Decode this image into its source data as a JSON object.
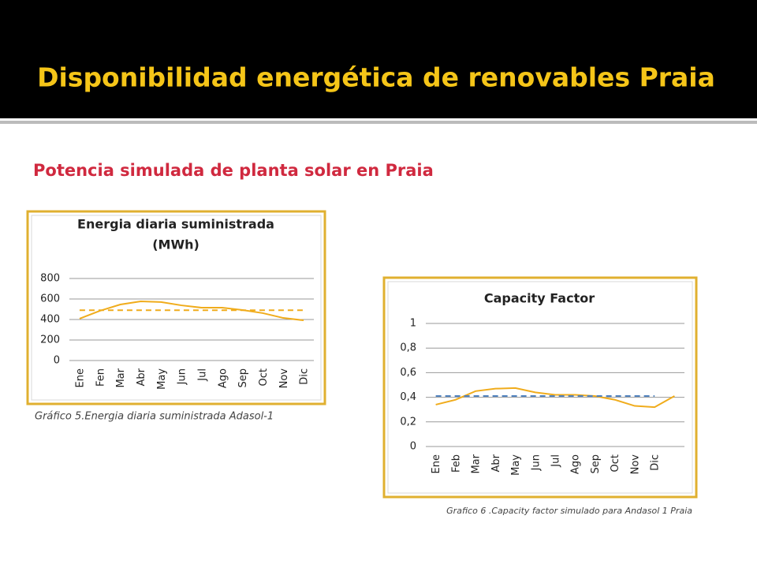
{
  "title": "Disponibilidad energética de renovables Praia",
  "subtitle": "Potencia simulada de planta solar en Praia",
  "chart_data": [
    {
      "type": "line",
      "title": [
        "Energia diaria suministrada",
        "(MWh)"
      ],
      "caption": "Gráfico 5.Energia diaria suministrada Adasol-1",
      "categories": [
        "Ene",
        "Fen",
        "Mar",
        "Abr",
        "May",
        "Jun",
        "Jul",
        "Ago",
        "Sep",
        "Oct",
        "Nov",
        "Dic"
      ],
      "series": [
        {
          "color": "#f0ac1c",
          "values": [
            408,
            485,
            546,
            577,
            570,
            538,
            515,
            515,
            492,
            462,
            415,
            392
          ]
        },
        {
          "color": "#f0ac1c",
          "dashed": true,
          "values": [
            490,
            490,
            490,
            490,
            490,
            490,
            490,
            490,
            490,
            490,
            490,
            490
          ]
        }
      ],
      "ylim": [
        0,
        800
      ],
      "yticks": [
        0,
        200,
        400,
        600,
        800
      ],
      "grid": true
    },
    {
      "type": "line",
      "title": [
        "Capacity Factor"
      ],
      "caption": "Grafico 6 .Capacity factor simulado para Andasol 1 Praia",
      "categories": [
        "Ene",
        "Feb",
        "Mar",
        "Abr",
        "May",
        "Jun",
        "Jul",
        "Ago",
        "Sep",
        "Oct",
        "Nov",
        "Dic",
        null
      ],
      "series": [
        {
          "color": "#f0ac1c",
          "values": [
            0.34,
            0.38,
            0.45,
            0.47,
            0.475,
            0.44,
            0.42,
            0.42,
            0.41,
            0.38,
            0.33,
            0.32,
            0.41
          ]
        },
        {
          "color": "#4f81bd",
          "dashed": true,
          "values": [
            0.41,
            0.41,
            0.41,
            0.41,
            0.41,
            0.41,
            0.41,
            0.41,
            0.41,
            0.41,
            0.41,
            0.41,
            null
          ]
        }
      ],
      "ylim": [
        0,
        1
      ],
      "yticks": [
        0,
        {
          "value": 0.2,
          "label": "0,2"
        },
        {
          "value": 0.4,
          "label": "0,4"
        },
        {
          "value": 0.6,
          "label": "0,6"
        },
        {
          "value": 0.8,
          "label": "0,8"
        },
        1
      ],
      "grid": true
    }
  ]
}
